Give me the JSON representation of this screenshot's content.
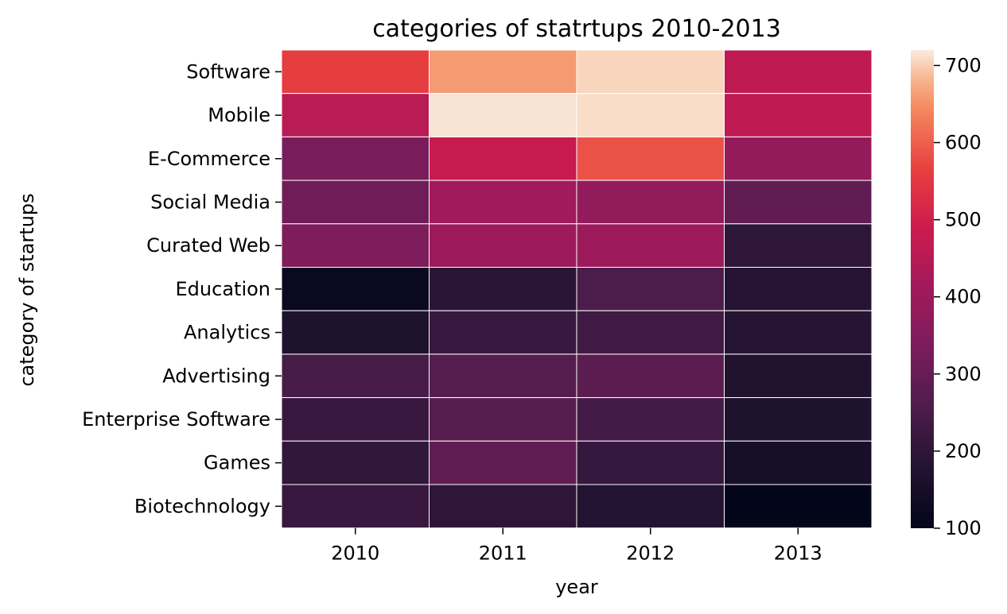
{
  "chart_data": {
    "type": "heatmap",
    "title": "categories of statrtups 2010-2013",
    "xlabel": "year",
    "ylabel": "category of startups",
    "x": [
      "2010",
      "2011",
      "2012",
      "2013"
    ],
    "y": [
      "Software",
      "Mobile",
      "E-Commerce",
      "Social Media",
      "Curated Web",
      "Education",
      "Analytics",
      "Advertising",
      "Enterprise Software",
      "Games",
      "Biotechnology"
    ],
    "values": [
      [
        560,
        660,
        705,
        465
      ],
      [
        455,
        715,
        710,
        465
      ],
      [
        330,
        480,
        585,
        385
      ],
      [
        315,
        410,
        380,
        290
      ],
      [
        340,
        400,
        400,
        200
      ],
      [
        120,
        195,
        255,
        185
      ],
      [
        170,
        220,
        235,
        185
      ],
      [
        245,
        270,
        280,
        175
      ],
      [
        220,
        275,
        240,
        170
      ],
      [
        205,
        290,
        215,
        150
      ],
      [
        220,
        200,
        180,
        100
      ]
    ],
    "colorbar": {
      "min": 100,
      "max": 720,
      "ticks": [
        100,
        200,
        300,
        400,
        500,
        600,
        700
      ]
    },
    "colormap": "rocket",
    "grid_line_color": "#ffffff"
  }
}
